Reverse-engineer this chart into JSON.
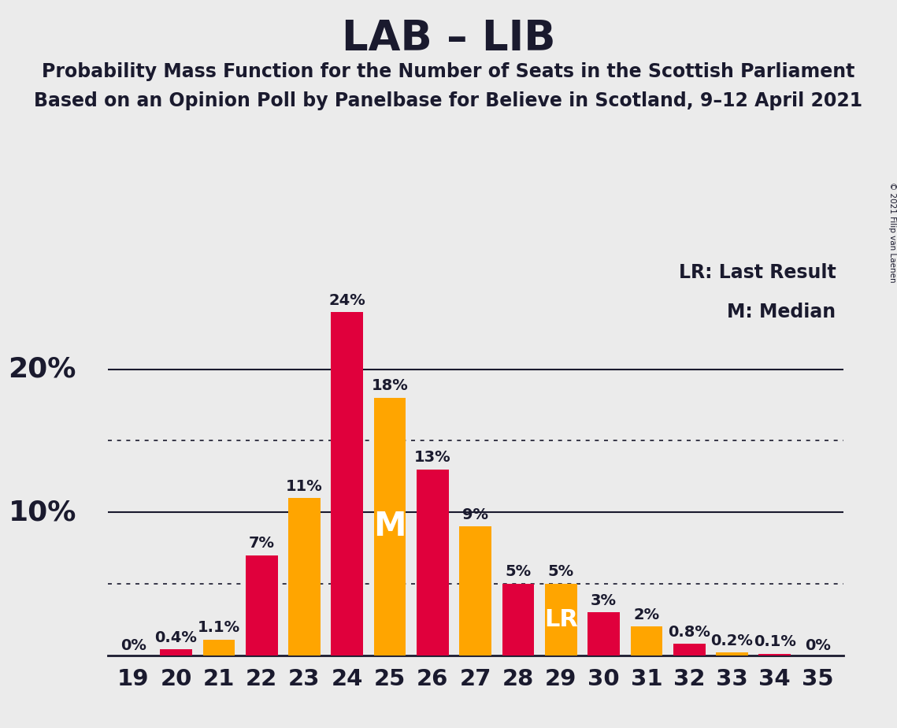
{
  "title": "LAB – LIB",
  "subtitle1": "Probability Mass Function for the Number of Seats in the Scottish Parliament",
  "subtitle2": "Based on an Opinion Poll by Panelbase for Believe in Scotland, 9–12 April 2021",
  "copyright": "© 2021 Filip van Laenen",
  "legend_lr": "LR: Last Result",
  "legend_m": "M: Median",
  "seats": [
    19,
    20,
    21,
    22,
    23,
    24,
    25,
    26,
    27,
    28,
    29,
    30,
    31,
    32,
    33,
    34,
    35
  ],
  "values": [
    0.0,
    0.4,
    1.1,
    7.0,
    11.0,
    24.0,
    18.0,
    13.0,
    9.0,
    5.0,
    5.0,
    3.0,
    2.0,
    0.8,
    0.2,
    0.1,
    0.0
  ],
  "labels": [
    "0%",
    "0.4%",
    "1.1%",
    "7%",
    "11%",
    "24%",
    "18%",
    "13%",
    "9%",
    "5%",
    "5%",
    "3%",
    "2%",
    "0.8%",
    "0.2%",
    "0.1%",
    "0%"
  ],
  "colors": [
    "#E0003C",
    "#E0003C",
    "#FFA500",
    "#E0003C",
    "#FFA500",
    "#E0003C",
    "#FFA500",
    "#E0003C",
    "#FFA500",
    "#E0003C",
    "#FFA500",
    "#E0003C",
    "#FFA500",
    "#E0003C",
    "#FFA500",
    "#E0003C",
    "#FFA500"
  ],
  "median_seat": 25,
  "lr_seat": 29,
  "background_color": "#EBEBEB",
  "title_fontsize": 38,
  "subtitle_fontsize": 17,
  "label_fontsize": 14,
  "tick_fontsize": 21,
  "ytick_large_fontsize": 26,
  "dotted_lines": [
    5.0,
    15.0
  ],
  "solid_lines": [
    10.0,
    20.0
  ],
  "ylim": [
    0,
    28
  ],
  "red_color": "#E0003C",
  "orange_color": "#FFA500",
  "text_color": "#1a1a2e"
}
